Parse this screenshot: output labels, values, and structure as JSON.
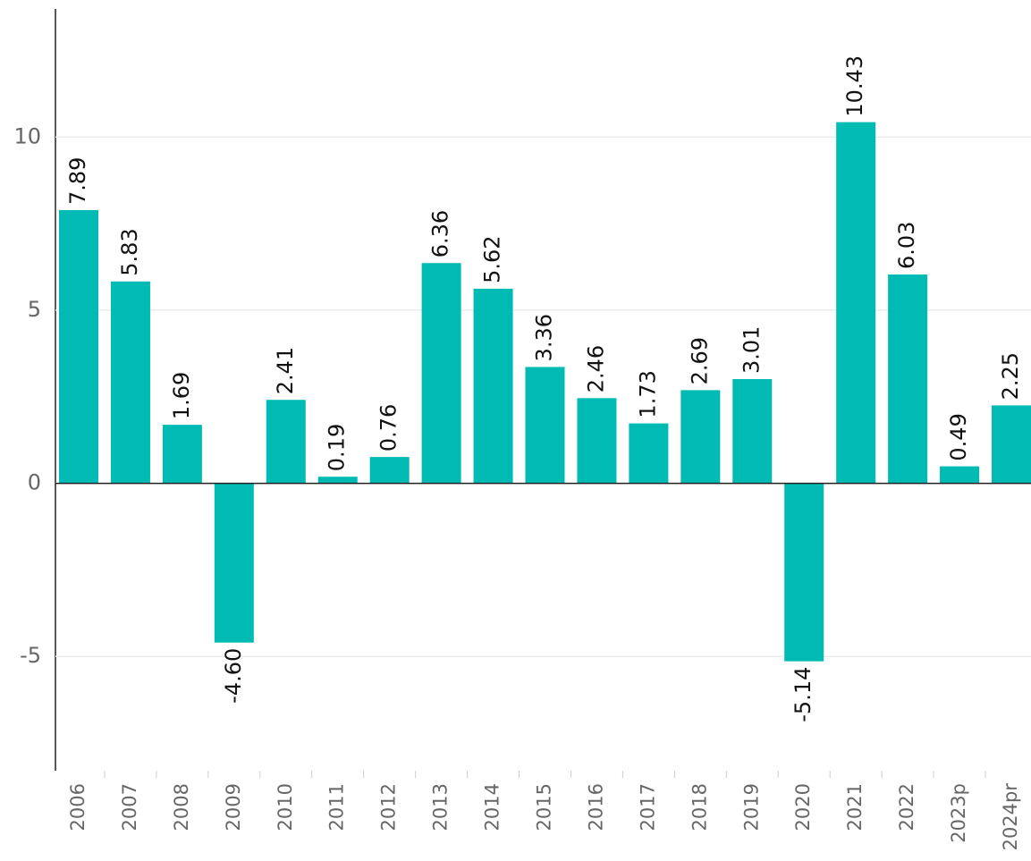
{
  "chart_data": {
    "type": "bar",
    "categories": [
      "2006",
      "2007",
      "2008",
      "2009",
      "2010",
      "2011",
      "2012",
      "2013",
      "2014",
      "2015",
      "2016",
      "2017",
      "2018",
      "2019",
      "2020",
      "2021",
      "2022",
      "2023p",
      "2024pr"
    ],
    "values": [
      7.89,
      5.83,
      1.69,
      -4.6,
      2.41,
      0.19,
      0.76,
      6.36,
      5.62,
      3.36,
      2.46,
      1.73,
      2.69,
      3.01,
      -5.14,
      10.43,
      6.03,
      0.49,
      2.25
    ],
    "value_labels": [
      "7.89",
      "5.83",
      "1.69",
      "-4.60",
      "2.41",
      "0.19",
      "0.76",
      "6.36",
      "5.62",
      "3.36",
      "2.46",
      "1.73",
      "2.69",
      "3.01",
      "-5.14",
      "10.43",
      "6.03",
      "0.49",
      "2.25"
    ],
    "color": "#00bbb4",
    "ylim": [
      -8.3,
      13.7
    ],
    "yticks": [
      -5,
      0,
      5,
      10
    ],
    "grid": true
  }
}
